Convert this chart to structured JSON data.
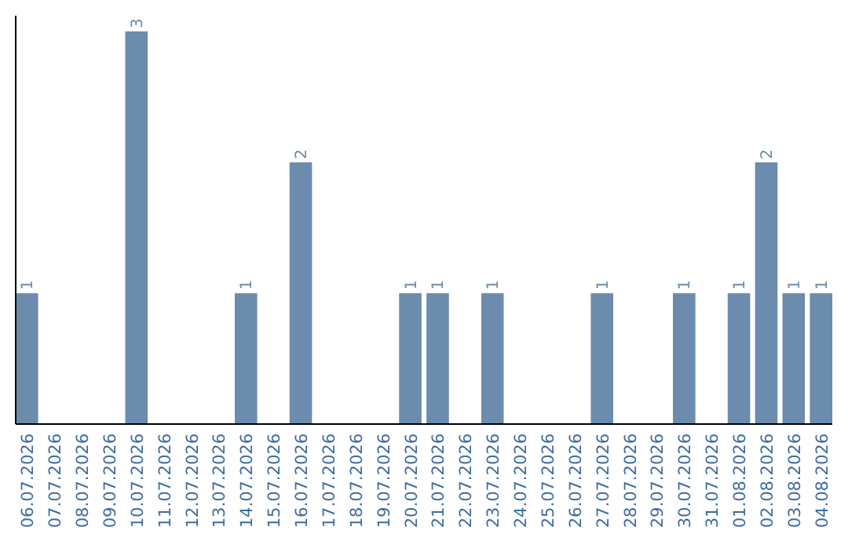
{
  "chart_data": {
    "type": "bar",
    "categories": [
      "06.07.2026",
      "07.07.2026",
      "08.07.2026",
      "09.07.2026",
      "10.07.2026",
      "11.07.2026",
      "12.07.2026",
      "13.07.2026",
      "14.07.2026",
      "15.07.2026",
      "16.07.2026",
      "17.07.2026",
      "18.07.2026",
      "19.07.2026",
      "20.07.2026",
      "21.07.2026",
      "22.07.2026",
      "23.07.2026",
      "24.07.2026",
      "25.07.2026",
      "26.07.2026",
      "27.07.2026",
      "28.07.2026",
      "29.07.2026",
      "30.07.2026",
      "31.07.2026",
      "01.08.2026",
      "02.08.2026",
      "03.08.2026",
      "04.08.2026"
    ],
    "values": [
      1,
      0,
      0,
      0,
      3,
      0,
      0,
      0,
      1,
      0,
      2,
      0,
      0,
      0,
      1,
      1,
      0,
      1,
      0,
      0,
      0,
      1,
      0,
      0,
      1,
      0,
      1,
      2,
      1,
      1
    ],
    "value_labels": [
      "1",
      null,
      null,
      null,
      "3",
      null,
      null,
      null,
      "1",
      null,
      "2",
      null,
      null,
      null,
      "1",
      "1",
      null,
      "1",
      null,
      null,
      null,
      "1",
      null,
      null,
      "1",
      null,
      "1",
      "2",
      "1",
      "1"
    ],
    "color": "#6b8cad"
  }
}
